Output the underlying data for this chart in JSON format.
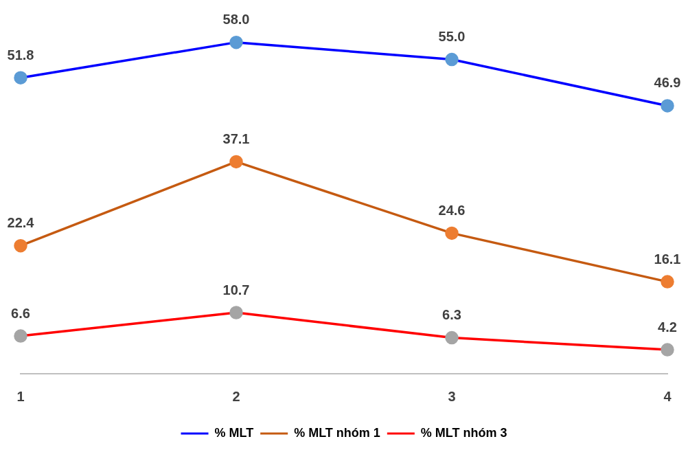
{
  "chart_data": {
    "type": "line",
    "categories": [
      "1",
      "2",
      "3",
      "4"
    ],
    "series": [
      {
        "name": "% MLT",
        "color": "#0000ff",
        "colors": [
          "#5b9bd5",
          "#5b9bd5",
          "#5b9bd5",
          "#5b9bd5"
        ],
        "values": [
          51.8,
          58,
          55,
          46.9
        ],
        "value_labels": [
          "51.8",
          "58.0",
          "55.0",
          "46.9"
        ]
      },
      {
        "name": "% MLT nhóm 1",
        "color": "#c55a11",
        "colors": [
          "#ed7d31",
          "#ed7d31",
          "#ed7d31",
          "#ed7d31"
        ],
        "values": [
          22.4,
          37.1,
          24.6,
          16.1
        ],
        "value_labels": [
          "22.4",
          "37.1",
          "24.6",
          "16.1"
        ]
      },
      {
        "name": "% MLT nhóm 3",
        "color": "#ff0000",
        "colors": [
          "#a5a5a5",
          "#a5a5a5",
          "#a5a5a5",
          "#a5a5a5"
        ],
        "values": [
          6.6,
          10.7,
          6.3,
          4.2
        ],
        "value_labels": [
          "6.6",
          "10.7",
          "6.3",
          "4.2"
        ]
      }
    ],
    "legend": "bottom",
    "grid": false,
    "marker": "circle",
    "line_style": "solid",
    "tick_labels": "x"
  }
}
